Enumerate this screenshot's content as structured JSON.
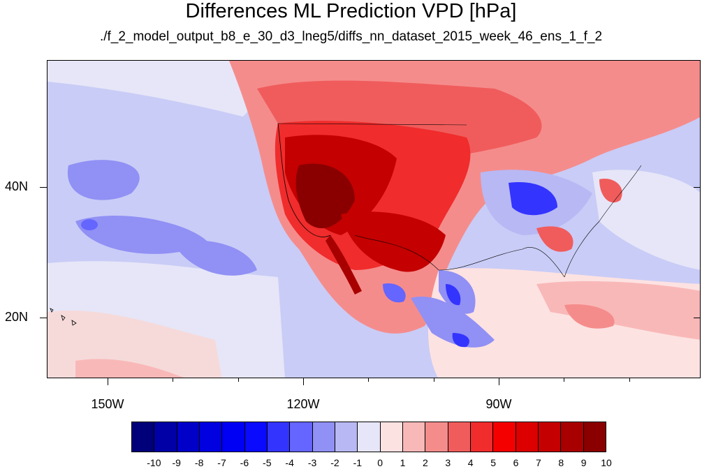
{
  "title": "Differences ML Prediction VPD [hPa]",
  "subtitle": "./f_2_model_output_b8_e_30_d3_lneg5/diffs_nn_dataset_2015_week_46_ens_1_f_2",
  "lon_labels": [
    "150W",
    "120W",
    "90W"
  ],
  "lat_labels": [
    "40N",
    "20N"
  ],
  "colorbar": {
    "labels": [
      "-10",
      "-9",
      "-8",
      "-7",
      "-6",
      "-5",
      "-4",
      "-3",
      "-2",
      "-1",
      "0",
      "1",
      "2",
      "3",
      "4",
      "5",
      "6",
      "7",
      "8",
      "9",
      "10"
    ],
    "colors": [
      "#00007a",
      "#0000a6",
      "#0000c8",
      "#0000e0",
      "#0000f5",
      "#0a0aff",
      "#3434ff",
      "#6565ff",
      "#9090f5",
      "#b8b8f4",
      "#e6e6f8",
      "#fde2e2",
      "#f9b8b8",
      "#f58c8c",
      "#f05c5c",
      "#f02c2c",
      "#f50000",
      "#dc0000",
      "#c40000",
      "#a80000",
      "#8a0000"
    ]
  },
  "legend_colors": {
    "ocean_background": "#c9ccf6",
    "negative_light": "#b8b8f4",
    "negative_strong": "#3434ff",
    "positive_light": "#f9b8b8",
    "positive_strong": "#f02c2c",
    "positive_max": "#8a0000"
  }
}
